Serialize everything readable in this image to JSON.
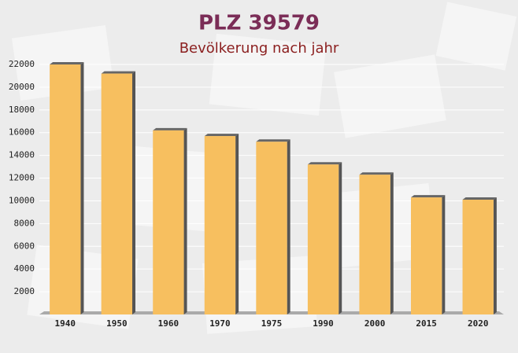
{
  "chart_data": {
    "type": "bar",
    "title": "PLZ 39579",
    "subtitle": "Bevölkerung nach jahr",
    "categories": [
      "1940",
      "1950",
      "1960",
      "1970",
      "1975",
      "1990",
      "2000",
      "2015",
      "2020"
    ],
    "values": [
      22000,
      21200,
      16200,
      15700,
      15200,
      13200,
      12300,
      10300,
      10100
    ],
    "color": "#f7bf5f",
    "ylim": [
      0,
      22000
    ],
    "yticks": [
      2000,
      4000,
      6000,
      8000,
      10000,
      12000,
      14000,
      16000,
      18000,
      20000,
      22000
    ],
    "grid": true
  }
}
